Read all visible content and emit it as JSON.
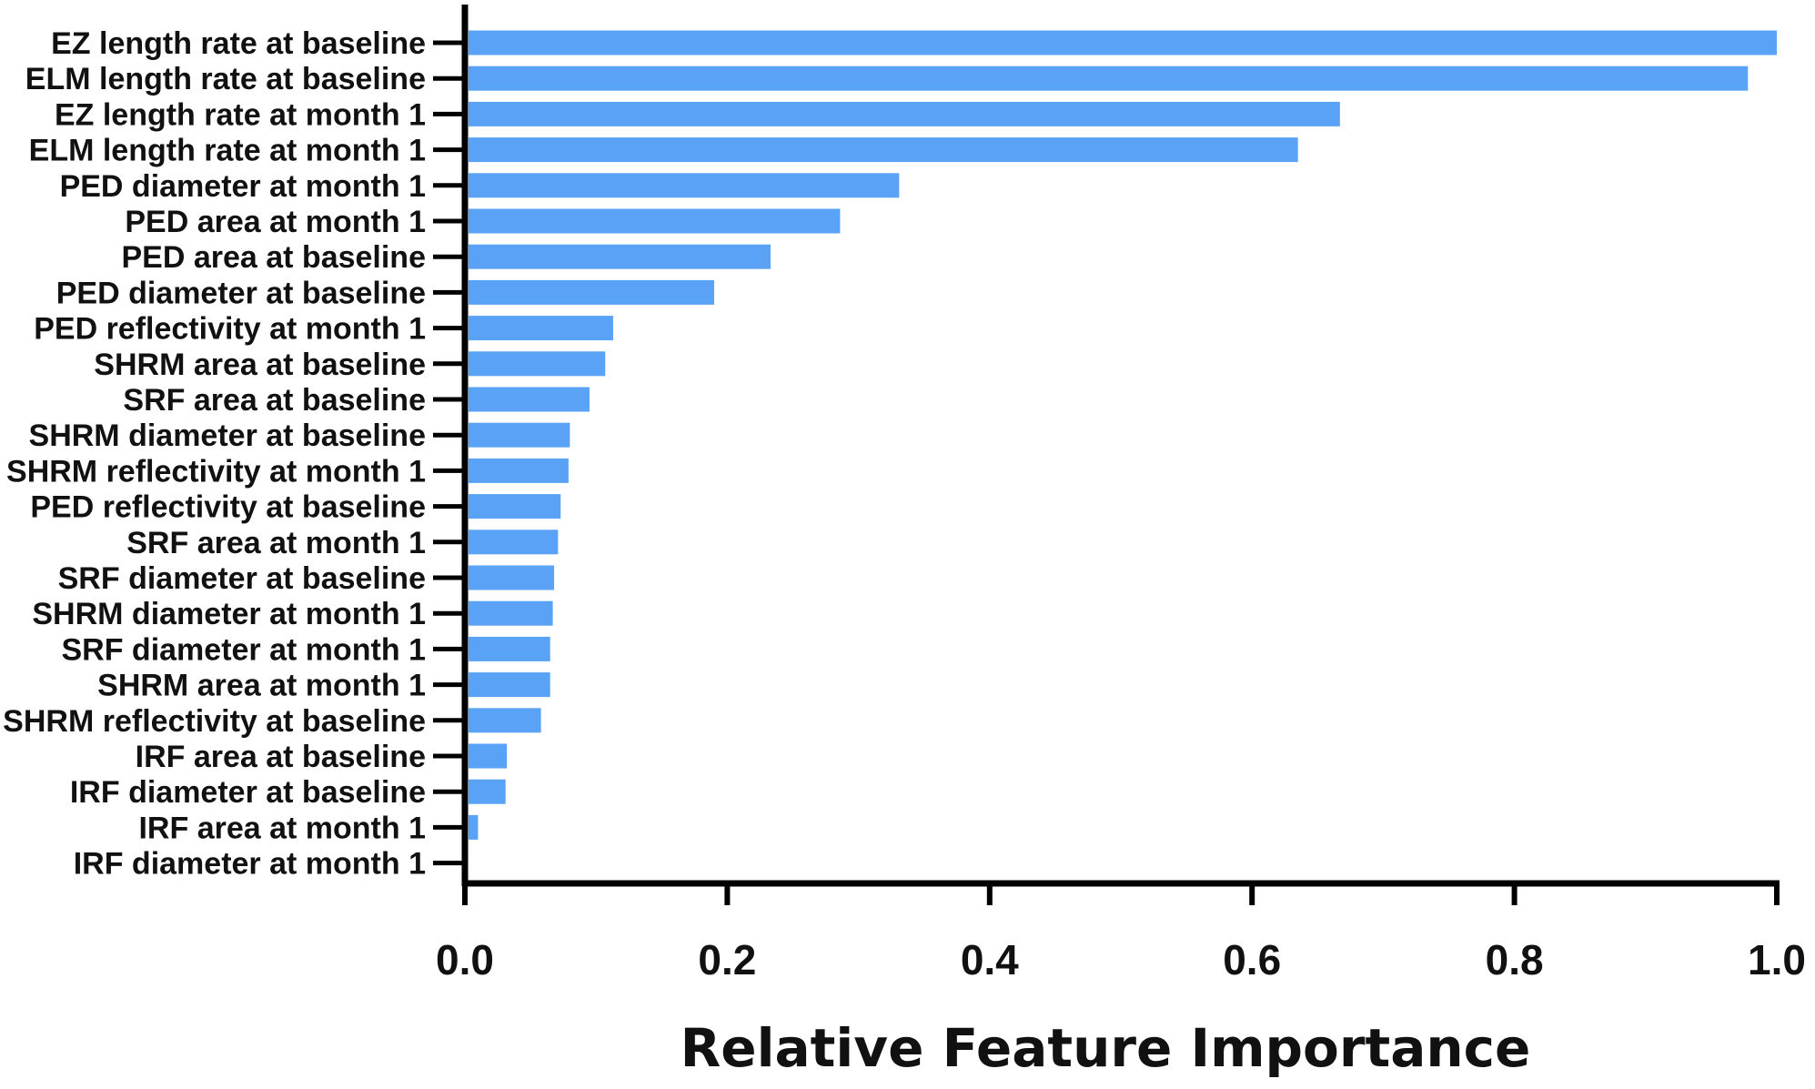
{
  "chart_data": {
    "type": "bar",
    "orientation": "horizontal",
    "title": "",
    "xlabel": "Relative Feature Importance",
    "ylabel": "",
    "xlim": [
      0,
      1.0
    ],
    "x_ticks": [
      "0.0",
      "0.2",
      "0.4",
      "0.6",
      "0.8",
      "1.0"
    ],
    "grid": false,
    "bar_color": "#5aa2f5",
    "axis_color": "#000000",
    "categories": [
      "EZ length rate at baseline",
      "ELM length rate at baseline",
      "EZ length rate at month 1",
      "ELM length rate at month 1",
      "PED diameter at month 1",
      "PED area at month 1",
      "PED area at baseline",
      "PED diameter at baseline",
      "PED reflectivity at month 1",
      "SHRM area at baseline",
      "SRF area at baseline",
      "SHRM diameter at baseline",
      "SHRM reflectivity at month 1",
      "PED reflectivity at baseline",
      "SRF area at month 1",
      "SRF diameter at baseline",
      "SHRM diameter at month 1",
      "SRF diameter at month 1",
      "SHRM area at month 1",
      "SHRM reflectivity at baseline",
      "IRF area at baseline",
      "IRF diameter at baseline",
      "IRF area at month 1",
      "IRF diameter at month 1"
    ],
    "values": [
      1.0,
      0.978,
      0.667,
      0.635,
      0.331,
      0.286,
      0.233,
      0.19,
      0.113,
      0.107,
      0.095,
      0.08,
      0.079,
      0.073,
      0.071,
      0.068,
      0.067,
      0.065,
      0.065,
      0.058,
      0.032,
      0.031,
      0.01,
      0.0
    ]
  }
}
